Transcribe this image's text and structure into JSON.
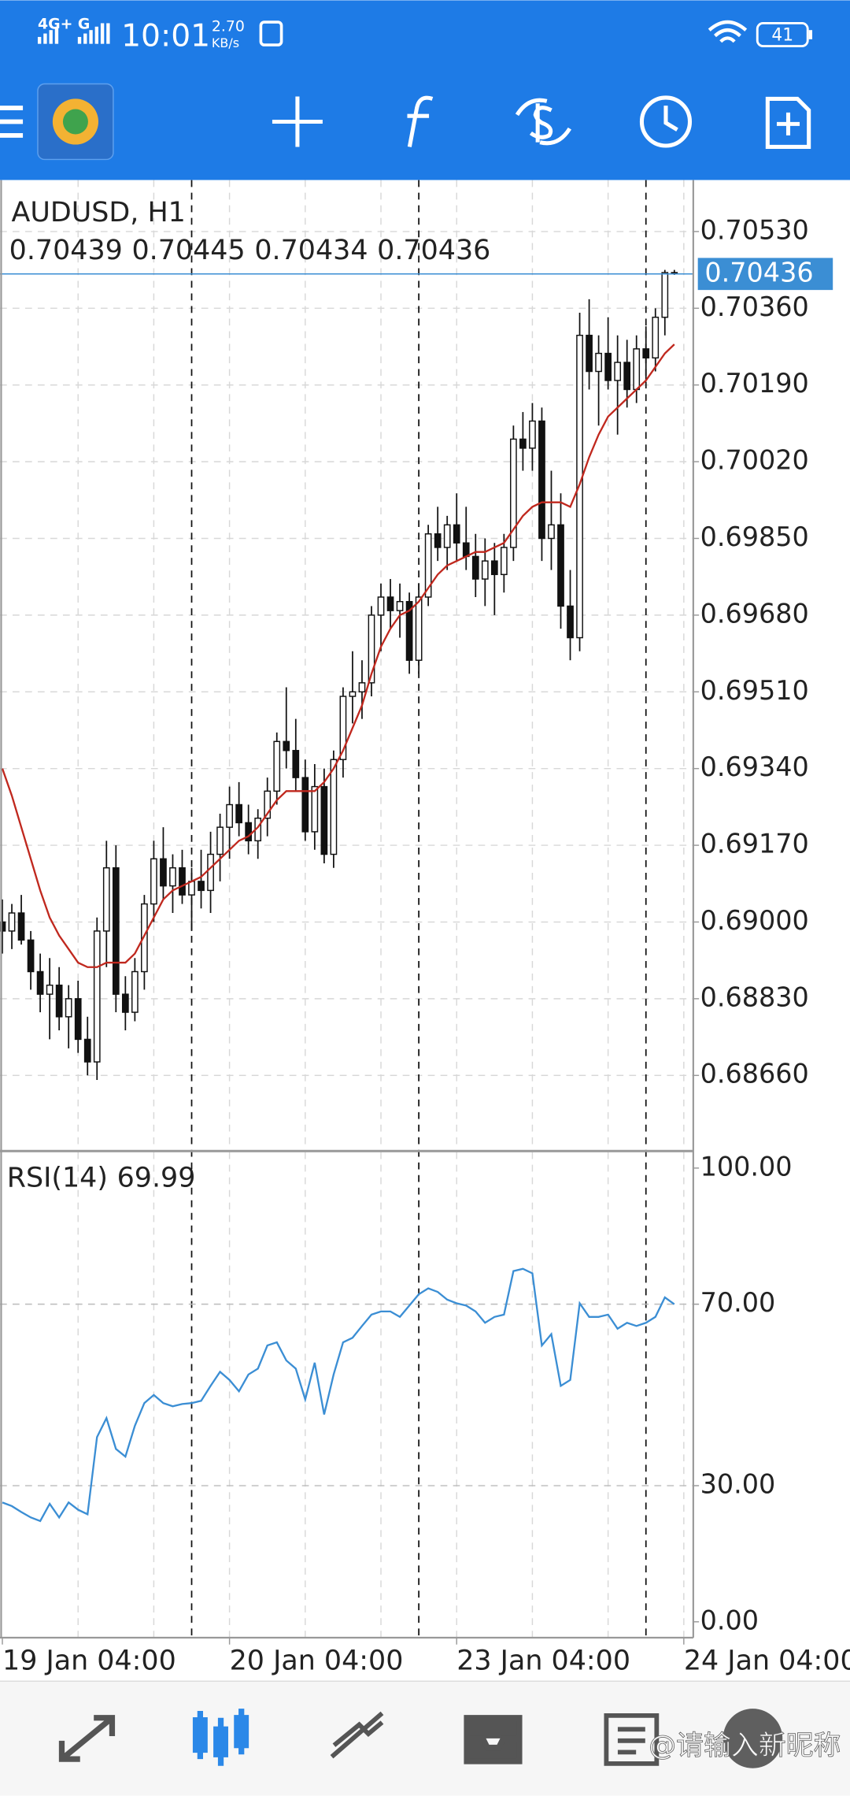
{
  "status_bar": {
    "network": "4G+",
    "network2": "G",
    "time": "10:01",
    "speed": "2.70",
    "speed_unit": "KB/s",
    "battery": "41"
  },
  "watermark": "@请输入新昵称",
  "chart_data": [
    {
      "type": "candlestick",
      "title": "AUDUSD, H1",
      "open": [
        0.69,
        0.6898,
        0.6902,
        0.6896,
        0.6889,
        0.6884,
        0.6886,
        0.6879,
        0.6883,
        0.6874,
        0.6869,
        0.6898,
        0.6912,
        0.6884,
        0.688,
        0.6889,
        0.6904,
        0.6914,
        0.6908,
        0.6912,
        0.6906,
        0.6909,
        0.6907,
        0.6915,
        0.6921,
        0.6926,
        0.6922,
        0.6918,
        0.6923,
        0.6929,
        0.694,
        0.6938,
        0.6932,
        0.692,
        0.693,
        0.6915,
        0.6936,
        0.695,
        0.6951,
        0.6953,
        0.6968,
        0.6972,
        0.6969,
        0.6971,
        0.6958,
        0.6972,
        0.6986,
        0.6983,
        0.6988,
        0.6984,
        0.6981,
        0.6976,
        0.698,
        0.6977,
        0.6983,
        0.7007,
        0.7005,
        0.7011,
        0.6985,
        0.6988,
        0.697,
        0.6963,
        0.703,
        0.7022,
        0.7026,
        0.702,
        0.7024,
        0.7018,
        0.7027,
        0.7025,
        0.7034,
        0.70439
      ],
      "high": [
        0.6905,
        0.6904,
        0.6906,
        0.6898,
        0.6893,
        0.6892,
        0.689,
        0.6886,
        0.6887,
        0.6879,
        0.6901,
        0.6918,
        0.6917,
        0.6888,
        0.6892,
        0.6906,
        0.6918,
        0.6921,
        0.6915,
        0.6916,
        0.6912,
        0.6916,
        0.692,
        0.6924,
        0.693,
        0.6931,
        0.6926,
        0.6925,
        0.6932,
        0.6942,
        0.6952,
        0.6945,
        0.6936,
        0.6935,
        0.6934,
        0.6938,
        0.6952,
        0.696,
        0.6958,
        0.697,
        0.6975,
        0.6976,
        0.6975,
        0.6973,
        0.6975,
        0.6988,
        0.6992,
        0.699,
        0.6995,
        0.6992,
        0.6986,
        0.6985,
        0.6984,
        0.6986,
        0.701,
        0.7013,
        0.7015,
        0.7014,
        0.7,
        0.6995,
        0.6978,
        0.7035,
        0.7038,
        0.703,
        0.7034,
        0.703,
        0.7029,
        0.703,
        0.7032,
        0.7036,
        0.70445,
        0.70445
      ],
      "low": [
        0.6893,
        0.6894,
        0.6895,
        0.6885,
        0.688,
        0.6874,
        0.6876,
        0.6872,
        0.6871,
        0.6866,
        0.6865,
        0.689,
        0.688,
        0.6876,
        0.6878,
        0.6885,
        0.69,
        0.6905,
        0.6902,
        0.6904,
        0.6898,
        0.6903,
        0.6902,
        0.6909,
        0.6914,
        0.6919,
        0.6915,
        0.6914,
        0.6919,
        0.6926,
        0.6934,
        0.6929,
        0.6918,
        0.6916,
        0.6913,
        0.6912,
        0.6932,
        0.6944,
        0.6945,
        0.695,
        0.696,
        0.6965,
        0.6963,
        0.6955,
        0.6955,
        0.697,
        0.698,
        0.6978,
        0.698,
        0.6978,
        0.6972,
        0.697,
        0.6968,
        0.6973,
        0.698,
        0.7,
        0.7,
        0.698,
        0.6978,
        0.6965,
        0.6958,
        0.696,
        0.7018,
        0.701,
        0.7018,
        0.7008,
        0.7014,
        0.7015,
        0.702,
        0.7022,
        0.703,
        0.70434
      ],
      "close": [
        0.6898,
        0.6902,
        0.6896,
        0.6889,
        0.6884,
        0.6886,
        0.6879,
        0.6883,
        0.6874,
        0.6869,
        0.6898,
        0.6912,
        0.6884,
        0.688,
        0.6889,
        0.6904,
        0.6914,
        0.6908,
        0.6912,
        0.6906,
        0.6909,
        0.6907,
        0.6915,
        0.6921,
        0.6926,
        0.6922,
        0.6918,
        0.6923,
        0.6929,
        0.694,
        0.6938,
        0.6932,
        0.692,
        0.693,
        0.6915,
        0.6936,
        0.695,
        0.6951,
        0.6953,
        0.6968,
        0.6972,
        0.6969,
        0.6971,
        0.6958,
        0.6972,
        0.6986,
        0.6983,
        0.6988,
        0.6984,
        0.6981,
        0.6976,
        0.698,
        0.6977,
        0.6983,
        0.7007,
        0.7005,
        0.7011,
        0.6985,
        0.6988,
        0.697,
        0.6963,
        0.703,
        0.7022,
        0.7026,
        0.702,
        0.7024,
        0.7018,
        0.7027,
        0.7025,
        0.7034,
        0.70439,
        0.70436
      ],
      "ma": {
        "color": "#c0281e",
        "values": [
          0.6934,
          0.6928,
          0.6921,
          0.6914,
          0.6907,
          0.6901,
          0.6897,
          0.6894,
          0.6891,
          0.689,
          0.689,
          0.6891,
          0.6891,
          0.6891,
          0.6893,
          0.6897,
          0.6901,
          0.6905,
          0.6907,
          0.6908,
          0.6909,
          0.691,
          0.6912,
          0.6914,
          0.6916,
          0.6918,
          0.6919,
          0.6921,
          0.6924,
          0.6927,
          0.6929,
          0.6929,
          0.6929,
          0.6929,
          0.6931,
          0.6934,
          0.6938,
          0.6943,
          0.6948,
          0.6955,
          0.6961,
          0.6965,
          0.6968,
          0.6969,
          0.6971,
          0.6974,
          0.6977,
          0.6979,
          0.698,
          0.6981,
          0.6982,
          0.6982,
          0.6983,
          0.6984,
          0.6987,
          0.699,
          0.6992,
          0.6993,
          0.6993,
          0.6993,
          0.6992,
          0.6997,
          0.7003,
          0.7008,
          0.7012,
          0.7014,
          0.7016,
          0.7018,
          0.702,
          0.7023,
          0.7026,
          0.7028
        ]
      },
      "price_line_color": "#3b8ed4",
      "ylim": [
        0.68495,
        0.70644
      ],
      "yticks": [
        {
          "value": 0.7053,
          "label": "0.70530"
        },
        {
          "value": 0.7036,
          "label": "0.70360"
        },
        {
          "value": 0.7019,
          "label": "0.70190"
        },
        {
          "value": 0.7002,
          "label": "0.70020"
        },
        {
          "value": 0.6985,
          "label": "0.69850"
        },
        {
          "value": 0.6968,
          "label": "0.69680"
        },
        {
          "value": 0.6951,
          "label": "0.69510"
        },
        {
          "value": 0.6934,
          "label": "0.69340"
        },
        {
          "value": 0.6917,
          "label": "0.69170"
        },
        {
          "value": 0.69,
          "label": "0.69000"
        },
        {
          "value": 0.6883,
          "label": "0.68830"
        },
        {
          "value": 0.6866,
          "label": "0.68660"
        }
      ],
      "xlim": [
        -0.25,
        73
      ],
      "xticks": [
        {
          "value": 0,
          "label": "19 Jan 04:00"
        },
        {
          "value": 24,
          "label": "20 Jan 04:00"
        },
        {
          "value": 48,
          "label": "23 Jan 04:00"
        },
        {
          "value": 72,
          "label": "24 Jan 04:00"
        }
      ],
      "xgrid": [
        8,
        16,
        24,
        32,
        40,
        48,
        56,
        64,
        72
      ],
      "period_separators": [
        20,
        44,
        68
      ],
      "grid": true
    },
    {
      "type": "line",
      "title": "RSI(14)",
      "series": [
        {
          "color": "#3b8ed4",
          "values": [
            26.3,
            25.5,
            24.2,
            23.0,
            22.2,
            26.0,
            23.0,
            26.3,
            24.7,
            23.7,
            40.7,
            44.9,
            38.1,
            36.4,
            43.2,
            48.2,
            50.0,
            48.2,
            47.5,
            48.0,
            48.2,
            48.7,
            52.0,
            55.1,
            53.3,
            50.8,
            54.5,
            55.8,
            60.9,
            61.6,
            57.6,
            55.8,
            49.0,
            57.1,
            45.7,
            54.5,
            61.6,
            62.6,
            65.2,
            67.7,
            68.4,
            68.4,
            67.2,
            69.7,
            72.2,
            73.5,
            72.7,
            71.0,
            70.2,
            69.7,
            68.4,
            65.9,
            67.2,
            67.7,
            77.3,
            77.8,
            76.8,
            60.9,
            63.4,
            52.0,
            53.3,
            70.2,
            67.2,
            67.2,
            67.7,
            64.6,
            65.9,
            65.2,
            65.9,
            67.2,
            71.5,
            69.99
          ]
        }
      ],
      "ylim": [
        -3.5,
        103.5
      ],
      "yticks": [
        {
          "value": 100,
          "label": "100.00"
        },
        {
          "value": 70,
          "label": "70.00"
        },
        {
          "value": 30,
          "label": "30.00"
        },
        {
          "value": 0,
          "label": "0.00"
        }
      ],
      "levels": [
        70,
        30
      ]
    }
  ]
}
